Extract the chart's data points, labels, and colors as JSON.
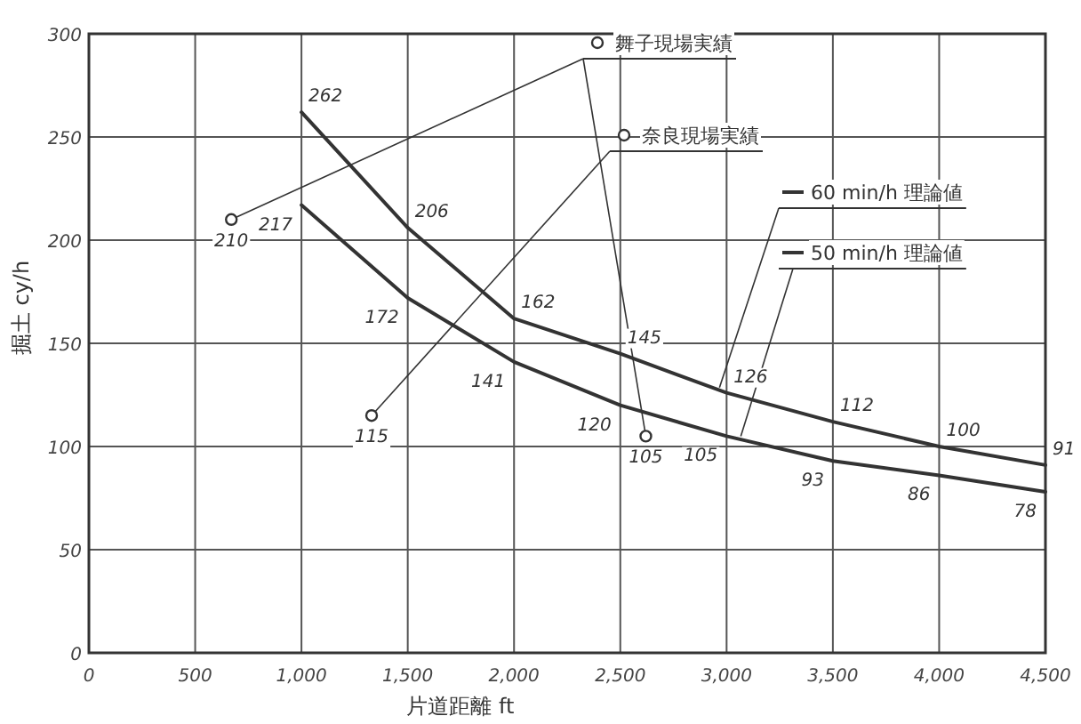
{
  "chart_data": {
    "type": "line",
    "xlabel": "片道距離 ft",
    "ylabel": "掘土 cy/h",
    "x": [
      1000,
      1500,
      2000,
      2500,
      3000,
      3500,
      4000,
      4500
    ],
    "series": [
      {
        "name": "60 min/h 理論値",
        "color": "#333333",
        "marker": "none",
        "values": [
          262,
          206,
          162,
          145,
          126,
          112,
          100,
          91
        ]
      },
      {
        "name": "50 min/h 理論値",
        "color": "#333333",
        "marker": "none",
        "values": [
          217,
          172,
          141,
          120,
          105,
          93,
          86,
          78
        ]
      },
      {
        "name": "舞子現場実績",
        "type": "scatter",
        "color": "#333333",
        "marker": "circle",
        "x": [
          670,
          2620
        ],
        "values": [
          210,
          105
        ]
      },
      {
        "name": "奈良現場実績",
        "type": "scatter",
        "color": "#333333",
        "marker": "circle",
        "x": [
          1330
        ],
        "values": [
          115
        ]
      }
    ],
    "xlim": [
      0,
      4500
    ],
    "ylim": [
      0,
      300
    ],
    "xticks": [
      0,
      500,
      {
        "value": 1000,
        "label": "1,000"
      },
      {
        "value": 1500,
        "label": "1,500"
      },
      {
        "value": 2000,
        "label": "2,000"
      },
      {
        "value": 2500,
        "label": "2,500"
      },
      {
        "value": 3000,
        "label": "3,000"
      },
      {
        "value": 3500,
        "label": "3,500"
      },
      {
        "value": 4000,
        "label": "4,000"
      },
      {
        "value": 4500,
        "label": "4,500"
      }
    ],
    "yticks": [
      0,
      50,
      100,
      150,
      200,
      250,
      300
    ],
    "grid": true,
    "legend": "top right",
    "data_labels": true,
    "line_style": "solid"
  }
}
